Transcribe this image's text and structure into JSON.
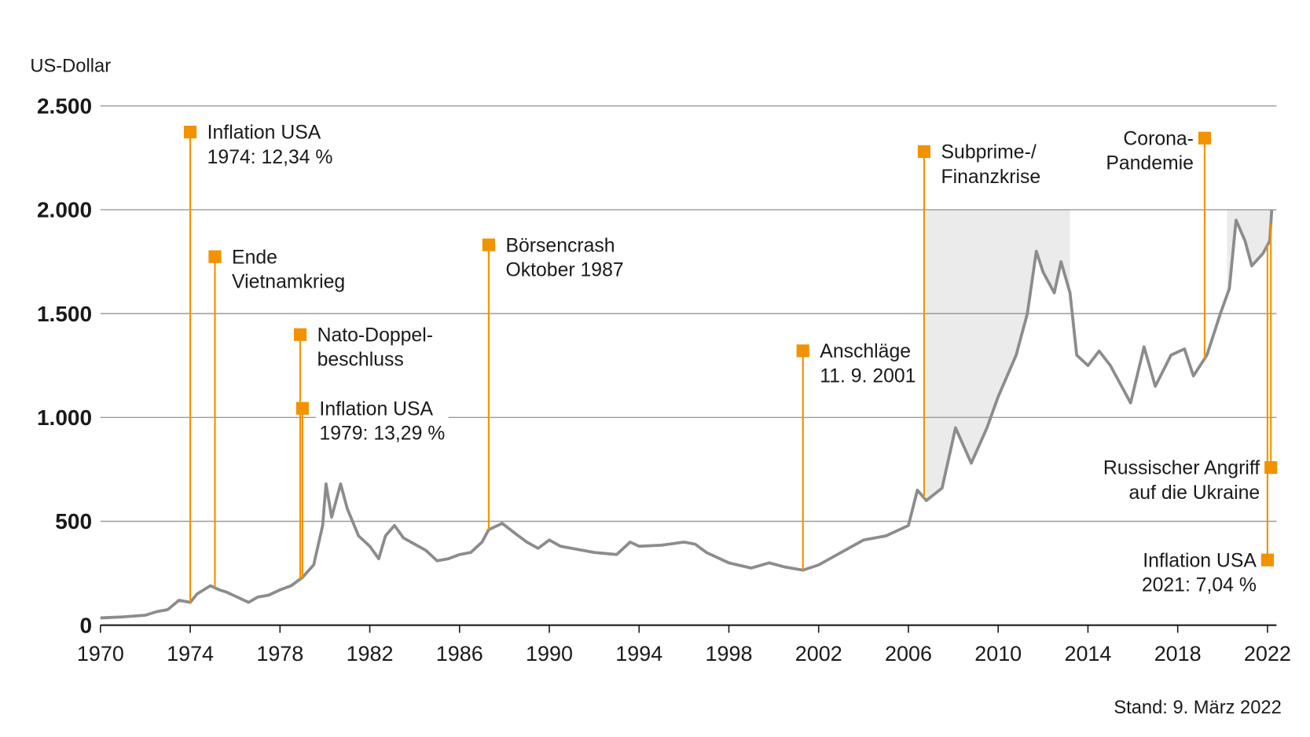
{
  "chart_data": {
    "type": "line",
    "y_axis_label": "US-Dollar",
    "footnote": "Stand: 9. März 2022",
    "xlim": [
      1970,
      2022.4
    ],
    "xticks": [
      1970,
      1974,
      1978,
      1982,
      1986,
      1990,
      1994,
      1998,
      2002,
      2006,
      2010,
      2014,
      2018,
      2022
    ],
    "ylim": [
      0,
      2500
    ],
    "yticks": [
      0,
      500,
      {
        "value": 1000,
        "label": "1.000"
      },
      {
        "value": 1500,
        "label": "1.500"
      },
      {
        "value": 2000,
        "label": "2.000"
      },
      {
        "value": 2500,
        "label": "2.500"
      }
    ],
    "grid": true,
    "series": [
      {
        "color": "#8c8c8c",
        "x": [
          1970,
          1971,
          1972,
          1972.5,
          1973,
          1973.5,
          1974,
          1974.3,
          1974.9,
          1975.3,
          1975.6,
          1976,
          1976.6,
          1977,
          1977.5,
          1978,
          1978.5,
          1979,
          1979.5,
          1979.9,
          1980.05,
          1980.3,
          1980.7,
          1981,
          1981.5,
          1982,
          1982.4,
          1982.7,
          1983.1,
          1983.5,
          1984,
          1984.5,
          1985,
          1985.5,
          1986,
          1986.5,
          1987,
          1987.3,
          1987.9,
          1988.5,
          1989,
          1989.5,
          1990,
          1990.5,
          1991,
          1992,
          1993,
          1993.6,
          1994,
          1995,
          1996,
          1996.5,
          1997,
          1998,
          1999,
          1999.8,
          2000.5,
          2001.3,
          2002,
          2003,
          2004,
          2005,
          2006,
          2006.4,
          2006.8,
          2007.5,
          2008.1,
          2008.8,
          2009.5,
          2010,
          2010.8,
          2011.3,
          2011.7,
          2012,
          2012.5,
          2012.8,
          2013.2,
          2013.5,
          2014,
          2014.5,
          2015,
          2015.5,
          2015.9,
          2016.5,
          2017,
          2017.7,
          2018.3,
          2018.7,
          2019.3,
          2019.9,
          2020.3,
          2020.6,
          2021,
          2021.3,
          2021.8,
          2022.1,
          2022.19
        ],
        "values": [
          35,
          40,
          48,
          65,
          75,
          120,
          110,
          150,
          190,
          170,
          160,
          140,
          110,
          135,
          145,
          170,
          190,
          230,
          290,
          480,
          680,
          520,
          680,
          560,
          430,
          380,
          320,
          430,
          480,
          420,
          390,
          360,
          310,
          320,
          340,
          350,
          400,
          460,
          490,
          440,
          400,
          370,
          410,
          380,
          370,
          350,
          340,
          400,
          380,
          385,
          400,
          390,
          350,
          300,
          275,
          300,
          280,
          265,
          290,
          350,
          410,
          430,
          480,
          650,
          600,
          660,
          950,
          780,
          950,
          1100,
          1300,
          1500,
          1800,
          1700,
          1600,
          1750,
          1600,
          1300,
          1250,
          1320,
          1250,
          1150,
          1070,
          1340,
          1150,
          1300,
          1330,
          1200,
          1300,
          1500,
          1620,
          1950,
          1850,
          1730,
          1790,
          1850,
          2000
        ]
      }
    ],
    "shade_top": 2000,
    "shaded_periods": [
      [
        2006.8,
        2013.2
      ],
      [
        2020.2,
        2022.19
      ]
    ],
    "shade_color": "#ebebeb",
    "annotation_color": "#f39200",
    "annotations": [
      {
        "x": 1974,
        "y": 2374,
        "side": "right",
        "lines": [
          "Inflation USA",
          "1974: 12,34 %"
        ]
      },
      {
        "x": 1975.1,
        "y": 1774,
        "side": "right",
        "lines": [
          "Ende",
          "Vietnamkrieg"
        ]
      },
      {
        "x": 1978.9,
        "y": 1399,
        "side": "right",
        "lines": [
          "Nato-Doppel-",
          "beschluss"
        ]
      },
      {
        "x": 1979,
        "y": 1044,
        "side": "right",
        "lines": [
          "Inflation USA",
          "1979: 13,29 %"
        ]
      },
      {
        "x": 1987.3,
        "y": 1831,
        "side": "right",
        "lines": [
          "Börsencrash",
          "Oktober 1987"
        ]
      },
      {
        "x": 2001.3,
        "y": 1321,
        "side": "right",
        "lines": [
          "Anschläge",
          "11. 9. 2001"
        ]
      },
      {
        "x": 2006.7,
        "y": 2280,
        "side": "right",
        "lines": [
          "Subprime-/",
          "Finanzkrise"
        ]
      },
      {
        "x": 2019.2,
        "y": 2345,
        "side": "left",
        "lines": [
          "Corona-",
          "Pandemie"
        ]
      },
      {
        "x": 2022.15,
        "y": 759,
        "side": "left",
        "lines": [
          "Russischer Angriff",
          "auf die Ukraine"
        ]
      },
      {
        "x": 2022.0,
        "y": 314,
        "side": "left",
        "lines": [
          "Inflation USA",
          "2021: 7,04 %"
        ]
      }
    ]
  }
}
